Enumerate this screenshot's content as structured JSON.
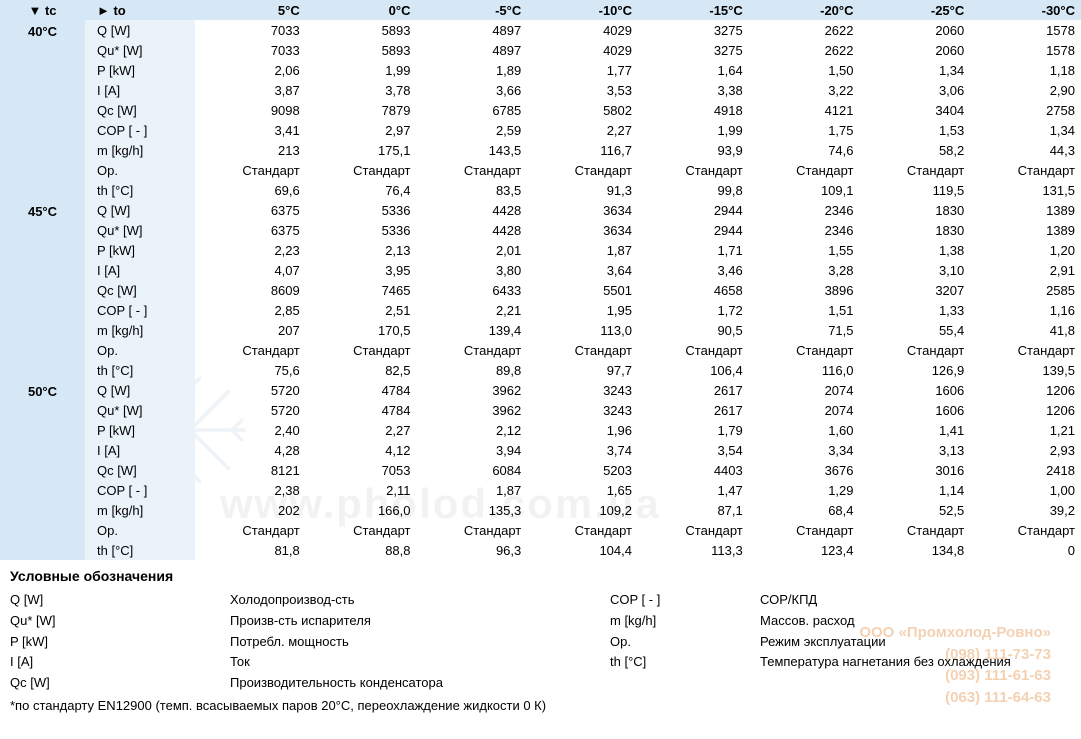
{
  "header": {
    "tc_label": "▼ tc",
    "to_label": "► to",
    "temps": [
      "5°C",
      "0°C",
      "-5°C",
      "-10°C",
      "-15°C",
      "-20°C",
      "-25°C",
      "-30°C"
    ]
  },
  "params": [
    "Q [W]",
    "Qu* [W]",
    "P [kW]",
    "I [A]",
    "Qc [W]",
    "COP [ - ]",
    "m [kg/h]",
    "Op.",
    "th [°C]"
  ],
  "groups": [
    {
      "tc": "40°C",
      "rows": [
        [
          "7033",
          "5893",
          "4897",
          "4029",
          "3275",
          "2622",
          "2060",
          "1578"
        ],
        [
          "7033",
          "5893",
          "4897",
          "4029",
          "3275",
          "2622",
          "2060",
          "1578"
        ],
        [
          "2,06",
          "1,99",
          "1,89",
          "1,77",
          "1,64",
          "1,50",
          "1,34",
          "1,18"
        ],
        [
          "3,87",
          "3,78",
          "3,66",
          "3,53",
          "3,38",
          "3,22",
          "3,06",
          "2,90"
        ],
        [
          "9098",
          "7879",
          "6785",
          "5802",
          "4918",
          "4121",
          "3404",
          "2758"
        ],
        [
          "3,41",
          "2,97",
          "2,59",
          "2,27",
          "1,99",
          "1,75",
          "1,53",
          "1,34"
        ],
        [
          "213",
          "175,1",
          "143,5",
          "116,7",
          "93,9",
          "74,6",
          "58,2",
          "44,3"
        ],
        [
          "Стандарт",
          "Стандарт",
          "Стандарт",
          "Стандарт",
          "Стандарт",
          "Стандарт",
          "Стандарт",
          "Стандарт"
        ],
        [
          "69,6",
          "76,4",
          "83,5",
          "91,3",
          "99,8",
          "109,1",
          "119,5",
          "131,5"
        ]
      ]
    },
    {
      "tc": "45°C",
      "rows": [
        [
          "6375",
          "5336",
          "4428",
          "3634",
          "2944",
          "2346",
          "1830",
          "1389"
        ],
        [
          "6375",
          "5336",
          "4428",
          "3634",
          "2944",
          "2346",
          "1830",
          "1389"
        ],
        [
          "2,23",
          "2,13",
          "2,01",
          "1,87",
          "1,71",
          "1,55",
          "1,38",
          "1,20"
        ],
        [
          "4,07",
          "3,95",
          "3,80",
          "3,64",
          "3,46",
          "3,28",
          "3,10",
          "2,91"
        ],
        [
          "8609",
          "7465",
          "6433",
          "5501",
          "4658",
          "3896",
          "3207",
          "2585"
        ],
        [
          "2,85",
          "2,51",
          "2,21",
          "1,95",
          "1,72",
          "1,51",
          "1,33",
          "1,16"
        ],
        [
          "207",
          "170,5",
          "139,4",
          "113,0",
          "90,5",
          "71,5",
          "55,4",
          "41,8"
        ],
        [
          "Стандарт",
          "Стандарт",
          "Стандарт",
          "Стандарт",
          "Стандарт",
          "Стандарт",
          "Стандарт",
          "Стандарт"
        ],
        [
          "75,6",
          "82,5",
          "89,8",
          "97,7",
          "106,4",
          "116,0",
          "126,9",
          "139,5"
        ]
      ]
    },
    {
      "tc": "50°C",
      "rows": [
        [
          "5720",
          "4784",
          "3962",
          "3243",
          "2617",
          "2074",
          "1606",
          "1206"
        ],
        [
          "5720",
          "4784",
          "3962",
          "3243",
          "2617",
          "2074",
          "1606",
          "1206"
        ],
        [
          "2,40",
          "2,27",
          "2,12",
          "1,96",
          "1,79",
          "1,60",
          "1,41",
          "1,21"
        ],
        [
          "4,28",
          "4,12",
          "3,94",
          "3,74",
          "3,54",
          "3,34",
          "3,13",
          "2,93"
        ],
        [
          "8121",
          "7053",
          "6084",
          "5203",
          "4403",
          "3676",
          "3016",
          "2418"
        ],
        [
          "2,38",
          "2,11",
          "1,87",
          "1,65",
          "1,47",
          "1,29",
          "1,14",
          "1,00"
        ],
        [
          "202",
          "166,0",
          "135,3",
          "109,2",
          "87,1",
          "68,4",
          "52,5",
          "39,2"
        ],
        [
          "Стандарт",
          "Стандарт",
          "Стандарт",
          "Стандарт",
          "Стандарт",
          "Стандарт",
          "Стандарт",
          "Стандарт"
        ],
        [
          "81,8",
          "88,8",
          "96,3",
          "104,4",
          "113,3",
          "123,4",
          "134,8",
          "0"
        ]
      ]
    }
  ],
  "legend": {
    "title": "Условные обозначения",
    "items": [
      {
        "sym": "Q [W]",
        "desc": "Холодопроизвод-сть",
        "sym2": "COP [ - ]",
        "desc2": "СОР/КПД"
      },
      {
        "sym": "Qu* [W]",
        "desc": "Произв-сть испарителя",
        "sym2": "m [kg/h]",
        "desc2": "Массов. расход"
      },
      {
        "sym": "P [kW]",
        "desc": "Потребл. мощность",
        "sym2": "Op.",
        "desc2": "Режим эксплуатации"
      },
      {
        "sym": "I [A]",
        "desc": "Ток",
        "sym2": "th [°C]",
        "desc2": "Температура нагнетания без охлаждения"
      },
      {
        "sym": "Qc [W]",
        "desc": "Производительность конденсатора",
        "sym2": "",
        "desc2": ""
      }
    ],
    "footnote": "*по стандарту EN12900 (темп. всасываемых паров 20°С, переохлаждение жидкости 0 К)"
  },
  "watermark": {
    "url": "www.pholod.com.ua",
    "company": "ООО «Промхолод-Ровно»",
    "phones": [
      "(098) 111-73-73",
      "(093) 111-61-63",
      "(063) 111-64-63"
    ]
  }
}
